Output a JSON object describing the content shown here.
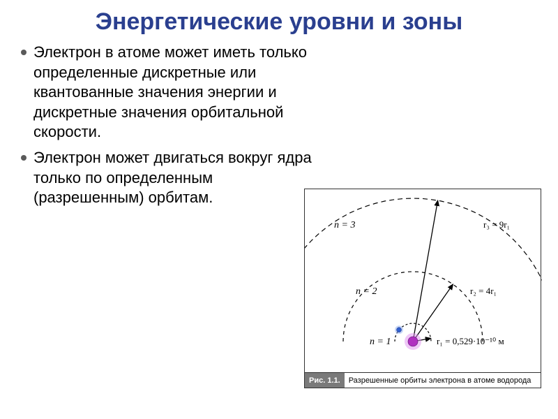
{
  "title": {
    "text": "Энергетические уровни и зоны",
    "color": "#2a3f8f",
    "fontsize": 34
  },
  "bullets": [
    "Электрон в атоме может иметь только определенные дискретные или квантованные значения энергии и дискретные значения орбитальной скорости.",
    "Электрон может двигаться вокруг ядра только по определенным (разрешенным) орбитам."
  ],
  "body": {
    "color": "#000000",
    "fontsize": 22
  },
  "figure": {
    "caption_tag": "Рис. 1.1.",
    "caption_text": "Разрешенные орбиты электрона в атоме водорода",
    "orbits": [
      {
        "n_label": "n = 1",
        "r_label": "r₁ = 0,529·10⁻¹⁰ м",
        "dash": "3,3"
      },
      {
        "n_label": "n = 2",
        "r_label": "r₂ = 4r₁",
        "dash": "5,5"
      },
      {
        "n_label": "n = 3",
        "r_label": "r₃ = 9r₁",
        "dash": "7,5"
      }
    ],
    "nucleus_fill": "#b030c0",
    "nucleus_glow": "#e090f0",
    "electron_fill": "#3060d0",
    "electron_ring": "#90b0f0",
    "arrow_color": "#000000"
  }
}
